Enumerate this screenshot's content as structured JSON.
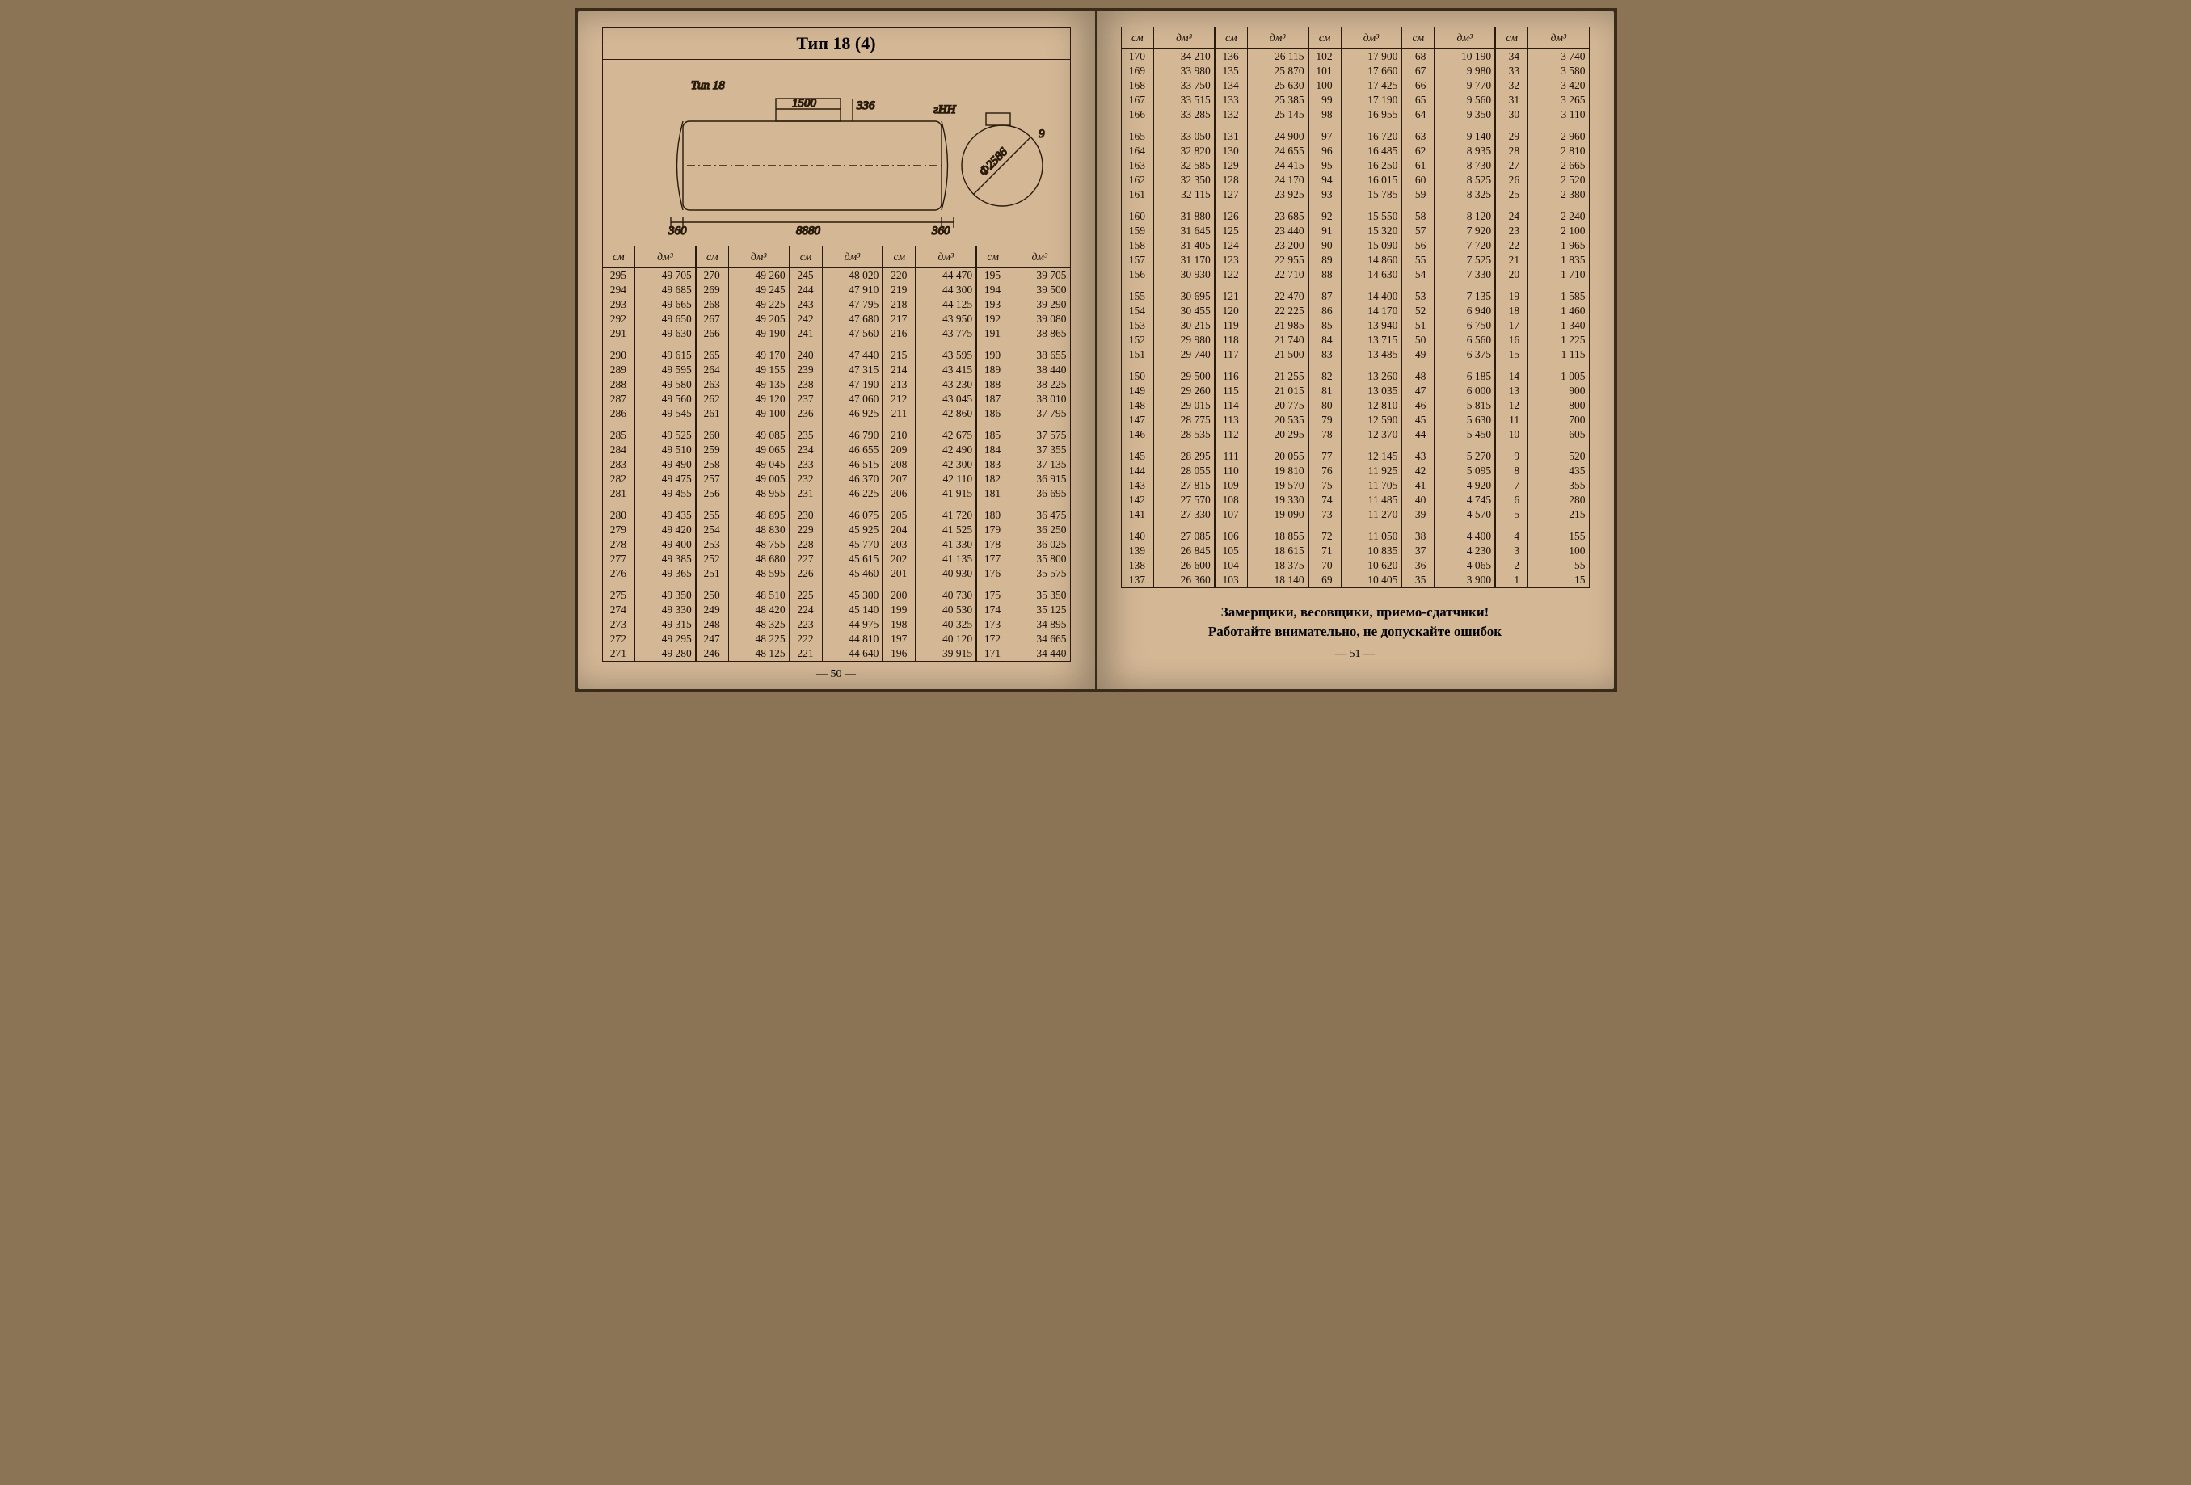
{
  "title": "Тип 18 (4)",
  "diagram": {
    "label": "Тип 18",
    "dims": {
      "top_hatch": "1500",
      "hatch_h": "336",
      "end_l": "360",
      "end_r": "360",
      "total": "8880",
      "dia": "Ф2586",
      "gHH": "гНН",
      "thick": "9"
    }
  },
  "headers": {
    "cm": "см",
    "dm": "дм³"
  },
  "left_page": {
    "groups": [
      [
        [
          "295",
          "49 705"
        ],
        [
          "270",
          "49 260"
        ],
        [
          "245",
          "48 020"
        ],
        [
          "220",
          "44 470"
        ],
        [
          "195",
          "39 705"
        ]
      ],
      [
        [
          "294",
          "49 685"
        ],
        [
          "269",
          "49 245"
        ],
        [
          "244",
          "47 910"
        ],
        [
          "219",
          "44 300"
        ],
        [
          "194",
          "39 500"
        ]
      ],
      [
        [
          "293",
          "49 665"
        ],
        [
          "268",
          "49 225"
        ],
        [
          "243",
          "47 795"
        ],
        [
          "218",
          "44 125"
        ],
        [
          "193",
          "39 290"
        ]
      ],
      [
        [
          "292",
          "49 650"
        ],
        [
          "267",
          "49 205"
        ],
        [
          "242",
          "47 680"
        ],
        [
          "217",
          "43 950"
        ],
        [
          "192",
          "39 080"
        ]
      ],
      [
        [
          "291",
          "49 630"
        ],
        [
          "266",
          "49 190"
        ],
        [
          "241",
          "47 560"
        ],
        [
          "216",
          "43 775"
        ],
        [
          "191",
          "38 865"
        ]
      ],
      [
        [
          "290",
          "49 615"
        ],
        [
          "265",
          "49 170"
        ],
        [
          "240",
          "47 440"
        ],
        [
          "215",
          "43 595"
        ],
        [
          "190",
          "38 655"
        ]
      ],
      [
        [
          "289",
          "49 595"
        ],
        [
          "264",
          "49 155"
        ],
        [
          "239",
          "47 315"
        ],
        [
          "214",
          "43 415"
        ],
        [
          "189",
          "38 440"
        ]
      ],
      [
        [
          "288",
          "49 580"
        ],
        [
          "263",
          "49 135"
        ],
        [
          "238",
          "47 190"
        ],
        [
          "213",
          "43 230"
        ],
        [
          "188",
          "38 225"
        ]
      ],
      [
        [
          "287",
          "49 560"
        ],
        [
          "262",
          "49 120"
        ],
        [
          "237",
          "47 060"
        ],
        [
          "212",
          "43 045"
        ],
        [
          "187",
          "38 010"
        ]
      ],
      [
        [
          "286",
          "49 545"
        ],
        [
          "261",
          "49 100"
        ],
        [
          "236",
          "46 925"
        ],
        [
          "211",
          "42 860"
        ],
        [
          "186",
          "37 795"
        ]
      ],
      [
        [
          "285",
          "49 525"
        ],
        [
          "260",
          "49 085"
        ],
        [
          "235",
          "46 790"
        ],
        [
          "210",
          "42 675"
        ],
        [
          "185",
          "37 575"
        ]
      ],
      [
        [
          "284",
          "49 510"
        ],
        [
          "259",
          "49 065"
        ],
        [
          "234",
          "46 655"
        ],
        [
          "209",
          "42 490"
        ],
        [
          "184",
          "37 355"
        ]
      ],
      [
        [
          "283",
          "49 490"
        ],
        [
          "258",
          "49 045"
        ],
        [
          "233",
          "46 515"
        ],
        [
          "208",
          "42 300"
        ],
        [
          "183",
          "37 135"
        ]
      ],
      [
        [
          "282",
          "49 475"
        ],
        [
          "257",
          "49 005"
        ],
        [
          "232",
          "46 370"
        ],
        [
          "207",
          "42 110"
        ],
        [
          "182",
          "36 915"
        ]
      ],
      [
        [
          "281",
          "49 455"
        ],
        [
          "256",
          "48 955"
        ],
        [
          "231",
          "46 225"
        ],
        [
          "206",
          "41 915"
        ],
        [
          "181",
          "36 695"
        ]
      ],
      [
        [
          "280",
          "49 435"
        ],
        [
          "255",
          "48 895"
        ],
        [
          "230",
          "46 075"
        ],
        [
          "205",
          "41 720"
        ],
        [
          "180",
          "36 475"
        ]
      ],
      [
        [
          "279",
          "49 420"
        ],
        [
          "254",
          "48 830"
        ],
        [
          "229",
          "45 925"
        ],
        [
          "204",
          "41 525"
        ],
        [
          "179",
          "36 250"
        ]
      ],
      [
        [
          "278",
          "49 400"
        ],
        [
          "253",
          "48 755"
        ],
        [
          "228",
          "45 770"
        ],
        [
          "203",
          "41 330"
        ],
        [
          "178",
          "36 025"
        ]
      ],
      [
        [
          "277",
          "49 385"
        ],
        [
          "252",
          "48 680"
        ],
        [
          "227",
          "45 615"
        ],
        [
          "202",
          "41 135"
        ],
        [
          "177",
          "35 800"
        ]
      ],
      [
        [
          "276",
          "49 365"
        ],
        [
          "251",
          "48 595"
        ],
        [
          "226",
          "45 460"
        ],
        [
          "201",
          "40 930"
        ],
        [
          "176",
          "35 575"
        ]
      ],
      [
        [
          "275",
          "49 350"
        ],
        [
          "250",
          "48 510"
        ],
        [
          "225",
          "45 300"
        ],
        [
          "200",
          "40 730"
        ],
        [
          "175",
          "35 350"
        ]
      ],
      [
        [
          "274",
          "49 330"
        ],
        [
          "249",
          "48 420"
        ],
        [
          "224",
          "45 140"
        ],
        [
          "199",
          "40 530"
        ],
        [
          "174",
          "35 125"
        ]
      ],
      [
        [
          "273",
          "49 315"
        ],
        [
          "248",
          "48 325"
        ],
        [
          "223",
          "44 975"
        ],
        [
          "198",
          "40 325"
        ],
        [
          "173",
          "34 895"
        ]
      ],
      [
        [
          "272",
          "49 295"
        ],
        [
          "247",
          "48 225"
        ],
        [
          "222",
          "44 810"
        ],
        [
          "197",
          "40 120"
        ],
        [
          "172",
          "34 665"
        ]
      ],
      [
        [
          "271",
          "49 280"
        ],
        [
          "246",
          "48 125"
        ],
        [
          "221",
          "44 640"
        ],
        [
          "196",
          "39 915"
        ],
        [
          "171",
          "34 440"
        ]
      ]
    ],
    "num": "— 50 —"
  },
  "right_page": {
    "groups": [
      [
        [
          "170",
          "34 210"
        ],
        [
          "136",
          "26 115"
        ],
        [
          "102",
          "17 900"
        ],
        [
          "68",
          "10 190"
        ],
        [
          "34",
          "3 740"
        ]
      ],
      [
        [
          "169",
          "33 980"
        ],
        [
          "135",
          "25 870"
        ],
        [
          "101",
          "17 660"
        ],
        [
          "67",
          "9 980"
        ],
        [
          "33",
          "3 580"
        ]
      ],
      [
        [
          "168",
          "33 750"
        ],
        [
          "134",
          "25 630"
        ],
        [
          "100",
          "17 425"
        ],
        [
          "66",
          "9 770"
        ],
        [
          "32",
          "3 420"
        ]
      ],
      [
        [
          "167",
          "33 515"
        ],
        [
          "133",
          "25 385"
        ],
        [
          "99",
          "17 190"
        ],
        [
          "65",
          "9 560"
        ],
        [
          "31",
          "3 265"
        ]
      ],
      [
        [
          "166",
          "33 285"
        ],
        [
          "132",
          "25 145"
        ],
        [
          "98",
          "16 955"
        ],
        [
          "64",
          "9 350"
        ],
        [
          "30",
          "3 110"
        ]
      ],
      [
        [
          "165",
          "33 050"
        ],
        [
          "131",
          "24 900"
        ],
        [
          "97",
          "16 720"
        ],
        [
          "63",
          "9 140"
        ],
        [
          "29",
          "2 960"
        ]
      ],
      [
        [
          "164",
          "32 820"
        ],
        [
          "130",
          "24 655"
        ],
        [
          "96",
          "16 485"
        ],
        [
          "62",
          "8 935"
        ],
        [
          "28",
          "2 810"
        ]
      ],
      [
        [
          "163",
          "32 585"
        ],
        [
          "129",
          "24 415"
        ],
        [
          "95",
          "16 250"
        ],
        [
          "61",
          "8 730"
        ],
        [
          "27",
          "2 665"
        ]
      ],
      [
        [
          "162",
          "32 350"
        ],
        [
          "128",
          "24 170"
        ],
        [
          "94",
          "16 015"
        ],
        [
          "60",
          "8 525"
        ],
        [
          "26",
          "2 520"
        ]
      ],
      [
        [
          "161",
          "32 115"
        ],
        [
          "127",
          "23 925"
        ],
        [
          "93",
          "15 785"
        ],
        [
          "59",
          "8 325"
        ],
        [
          "25",
          "2 380"
        ]
      ],
      [
        [
          "160",
          "31 880"
        ],
        [
          "126",
          "23 685"
        ],
        [
          "92",
          "15 550"
        ],
        [
          "58",
          "8 120"
        ],
        [
          "24",
          "2 240"
        ]
      ],
      [
        [
          "159",
          "31 645"
        ],
        [
          "125",
          "23 440"
        ],
        [
          "91",
          "15 320"
        ],
        [
          "57",
          "7 920"
        ],
        [
          "23",
          "2 100"
        ]
      ],
      [
        [
          "158",
          "31 405"
        ],
        [
          "124",
          "23 200"
        ],
        [
          "90",
          "15 090"
        ],
        [
          "56",
          "7 720"
        ],
        [
          "22",
          "1 965"
        ]
      ],
      [
        [
          "157",
          "31 170"
        ],
        [
          "123",
          "22 955"
        ],
        [
          "89",
          "14 860"
        ],
        [
          "55",
          "7 525"
        ],
        [
          "21",
          "1 835"
        ]
      ],
      [
        [
          "156",
          "30 930"
        ],
        [
          "122",
          "22 710"
        ],
        [
          "88",
          "14 630"
        ],
        [
          "54",
          "7 330"
        ],
        [
          "20",
          "1 710"
        ]
      ],
      [
        [
          "155",
          "30 695"
        ],
        [
          "121",
          "22 470"
        ],
        [
          "87",
          "14 400"
        ],
        [
          "53",
          "7 135"
        ],
        [
          "19",
          "1 585"
        ]
      ],
      [
        [
          "154",
          "30 455"
        ],
        [
          "120",
          "22 225"
        ],
        [
          "86",
          "14 170"
        ],
        [
          "52",
          "6 940"
        ],
        [
          "18",
          "1 460"
        ]
      ],
      [
        [
          "153",
          "30 215"
        ],
        [
          "119",
          "21 985"
        ],
        [
          "85",
          "13 940"
        ],
        [
          "51",
          "6 750"
        ],
        [
          "17",
          "1 340"
        ]
      ],
      [
        [
          "152",
          "29 980"
        ],
        [
          "118",
          "21 740"
        ],
        [
          "84",
          "13 715"
        ],
        [
          "50",
          "6 560"
        ],
        [
          "16",
          "1 225"
        ]
      ],
      [
        [
          "151",
          "29 740"
        ],
        [
          "117",
          "21 500"
        ],
        [
          "83",
          "13 485"
        ],
        [
          "49",
          "6 375"
        ],
        [
          "15",
          "1 115"
        ]
      ],
      [
        [
          "150",
          "29 500"
        ],
        [
          "116",
          "21 255"
        ],
        [
          "82",
          "13 260"
        ],
        [
          "48",
          "6 185"
        ],
        [
          "14",
          "1 005"
        ]
      ],
      [
        [
          "149",
          "29 260"
        ],
        [
          "115",
          "21 015"
        ],
        [
          "81",
          "13 035"
        ],
        [
          "47",
          "6 000"
        ],
        [
          "13",
          "900"
        ]
      ],
      [
        [
          "148",
          "29 015"
        ],
        [
          "114",
          "20 775"
        ],
        [
          "80",
          "12 810"
        ],
        [
          "46",
          "5 815"
        ],
        [
          "12",
          "800"
        ]
      ],
      [
        [
          "147",
          "28 775"
        ],
        [
          "113",
          "20 535"
        ],
        [
          "79",
          "12 590"
        ],
        [
          "45",
          "5 630"
        ],
        [
          "11",
          "700"
        ]
      ],
      [
        [
          "146",
          "28 535"
        ],
        [
          "112",
          "20 295"
        ],
        [
          "78",
          "12 370"
        ],
        [
          "44",
          "5 450"
        ],
        [
          "10",
          "605"
        ]
      ],
      [
        [
          "145",
          "28 295"
        ],
        [
          "111",
          "20 055"
        ],
        [
          "77",
          "12 145"
        ],
        [
          "43",
          "5 270"
        ],
        [
          "9",
          "520"
        ]
      ],
      [
        [
          "144",
          "28 055"
        ],
        [
          "110",
          "19 810"
        ],
        [
          "76",
          "11 925"
        ],
        [
          "42",
          "5 095"
        ],
        [
          "8",
          "435"
        ]
      ],
      [
        [
          "143",
          "27 815"
        ],
        [
          "109",
          "19 570"
        ],
        [
          "75",
          "11 705"
        ],
        [
          "41",
          "4 920"
        ],
        [
          "7",
          "355"
        ]
      ],
      [
        [
          "142",
          "27 570"
        ],
        [
          "108",
          "19 330"
        ],
        [
          "74",
          "11 485"
        ],
        [
          "40",
          "4 745"
        ],
        [
          "6",
          "280"
        ]
      ],
      [
        [
          "141",
          "27 330"
        ],
        [
          "107",
          "19 090"
        ],
        [
          "73",
          "11 270"
        ],
        [
          "39",
          "4 570"
        ],
        [
          "5",
          "215"
        ]
      ],
      [
        [
          "140",
          "27 085"
        ],
        [
          "106",
          "18 855"
        ],
        [
          "72",
          "11 050"
        ],
        [
          "38",
          "4 400"
        ],
        [
          "4",
          "155"
        ]
      ],
      [
        [
          "139",
          "26 845"
        ],
        [
          "105",
          "18 615"
        ],
        [
          "71",
          "10 835"
        ],
        [
          "37",
          "4 230"
        ],
        [
          "3",
          "100"
        ]
      ],
      [
        [
          "138",
          "26 600"
        ],
        [
          "104",
          "18 375"
        ],
        [
          "70",
          "10 620"
        ],
        [
          "36",
          "4 065"
        ],
        [
          "2",
          "55"
        ]
      ],
      [
        [
          "137",
          "26 360"
        ],
        [
          "103",
          "18 140"
        ],
        [
          "69",
          "10 405"
        ],
        [
          "35",
          "3 900"
        ],
        [
          "1",
          "15"
        ]
      ]
    ],
    "num": "— 51 —",
    "note1": "Замерщики, весовщики, приемо-сдатчики!",
    "note2": "Работайте внимательно, не допускайте ошибок"
  }
}
